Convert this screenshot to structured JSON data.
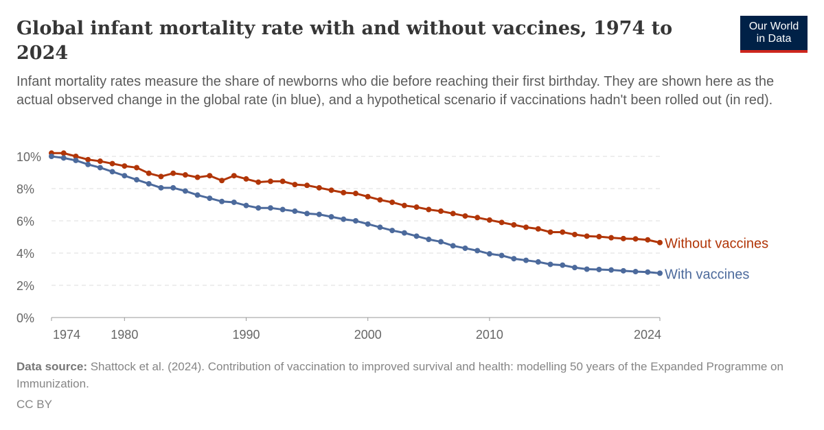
{
  "title": "Global infant mortality rate with and without vaccines, 1974 to 2024",
  "subtitle": "Infant mortality rates measure the share of newborns who die before reaching their first birthday. They are shown here as the actual observed change in the global rate (in blue), and a hypothetical scenario if vaccinations hadn't been rolled out (in red).",
  "logo": {
    "line1": "Our World",
    "line2": "in Data",
    "bg": "#002147",
    "accent": "#ce261e"
  },
  "source_label": "Data source:",
  "source_text": "Shattock et al. (2024). Contribution of vaccination to improved survival and health: modelling 50 years of the Expanded Programme on Immunization.",
  "license": "CC BY",
  "chart_data": {
    "type": "line",
    "ylim": [
      0,
      10
    ],
    "yticks": [
      0,
      2,
      4,
      6,
      8,
      10
    ],
    "ytick_labels": [
      "0%",
      "2%",
      "4%",
      "6%",
      "8%",
      "10%"
    ],
    "xlim": [
      1974,
      2024
    ],
    "xticks": [
      1974,
      1980,
      1990,
      2000,
      2010,
      2024
    ],
    "grid": "horizontal dashed",
    "x": [
      1974,
      1975,
      1976,
      1977,
      1978,
      1979,
      1980,
      1981,
      1982,
      1983,
      1984,
      1985,
      1986,
      1987,
      1988,
      1989,
      1990,
      1991,
      1992,
      1993,
      1994,
      1995,
      1996,
      1997,
      1998,
      1999,
      2000,
      2001,
      2002,
      2003,
      2004,
      2005,
      2006,
      2007,
      2008,
      2009,
      2010,
      2011,
      2012,
      2013,
      2014,
      2015,
      2016,
      2017,
      2018,
      2019,
      2020,
      2021,
      2022,
      2023,
      2024
    ],
    "series": [
      {
        "name": "Without vaccines",
        "color": "#b13507",
        "values": [
          10.2,
          10.2,
          10.0,
          9.8,
          9.7,
          9.55,
          9.4,
          9.3,
          8.95,
          8.75,
          8.95,
          8.85,
          8.7,
          8.8,
          8.5,
          8.8,
          8.6,
          8.4,
          8.45,
          8.45,
          8.25,
          8.2,
          8.05,
          7.9,
          7.75,
          7.7,
          7.5,
          7.3,
          7.15,
          6.95,
          6.85,
          6.7,
          6.6,
          6.45,
          6.3,
          6.2,
          6.05,
          5.9,
          5.75,
          5.6,
          5.5,
          5.3,
          5.3,
          5.15,
          5.05,
          5.02,
          4.95,
          4.9,
          4.88,
          4.82,
          4.65
        ]
      },
      {
        "name": "With vaccines",
        "color": "#4c6a9c",
        "values": [
          10.0,
          9.9,
          9.75,
          9.5,
          9.3,
          9.05,
          8.8,
          8.55,
          8.3,
          8.05,
          8.05,
          7.85,
          7.6,
          7.4,
          7.2,
          7.15,
          6.95,
          6.8,
          6.8,
          6.7,
          6.6,
          6.45,
          6.4,
          6.25,
          6.1,
          6.0,
          5.8,
          5.6,
          5.4,
          5.25,
          5.05,
          4.85,
          4.7,
          4.45,
          4.3,
          4.15,
          3.95,
          3.85,
          3.65,
          3.55,
          3.45,
          3.3,
          3.25,
          3.1,
          3.0,
          2.98,
          2.95,
          2.9,
          2.85,
          2.82,
          2.75
        ]
      }
    ]
  }
}
